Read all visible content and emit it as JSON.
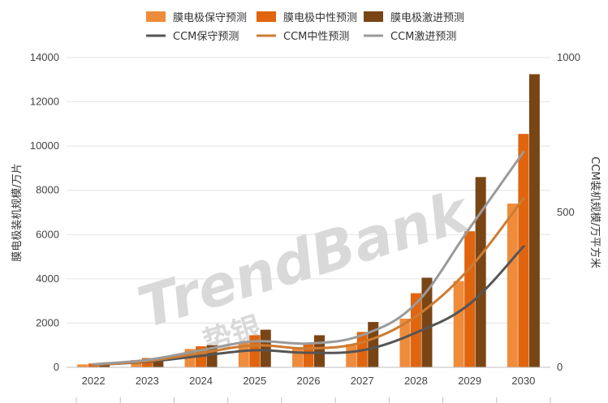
{
  "watermark": {
    "brand": "TrendBank",
    "sub": "势银"
  },
  "chart_data": {
    "type": "bar",
    "categories": [
      "2022",
      "2023",
      "2024",
      "2025",
      "2026",
      "2027",
      "2028",
      "2029",
      "2030"
    ],
    "ylabel": "膜电极装机规模/万片",
    "y2label": "CCM装机规模/万平方米",
    "ylim": [
      0,
      14000
    ],
    "y2lim": [
      0,
      1000
    ],
    "yticks": [
      0,
      2000,
      4000,
      6000,
      8000,
      10000,
      12000,
      14000
    ],
    "y2ticks": [
      0,
      500,
      1000
    ],
    "grid": true,
    "legend_position": "top",
    "bar_series": [
      {
        "name": "膜电极保守预测",
        "color": "#ee8c3c",
        "values": [
          130,
          330,
          830,
          1150,
          880,
          1050,
          2200,
          3900,
          7400
        ]
      },
      {
        "name": "膜电极中性预测",
        "color": "#e0650e",
        "values": [
          170,
          420,
          950,
          1450,
          1050,
          1600,
          3350,
          6150,
          10550
        ]
      },
      {
        "name": "膜电极激进预测",
        "color": "#7a4515",
        "values": [
          170,
          420,
          1000,
          1700,
          1450,
          2050,
          4050,
          8600,
          13250
        ]
      }
    ],
    "line_series": [
      {
        "name": "CCM保守预测",
        "color": "#555555",
        "values": [
          8,
          18,
          37,
          55,
          47,
          55,
          112,
          205,
          390
        ]
      },
      {
        "name": "CCM中性预测",
        "color": "#cc7c32",
        "values": [
          8,
          20,
          46,
          71,
          61,
          81,
          165,
          320,
          545
        ]
      },
      {
        "name": "CCM激进预测",
        "color": "#9a9a9a",
        "values": [
          10,
          24,
          55,
          84,
          77,
          104,
          206,
          450,
          695
        ]
      }
    ]
  }
}
